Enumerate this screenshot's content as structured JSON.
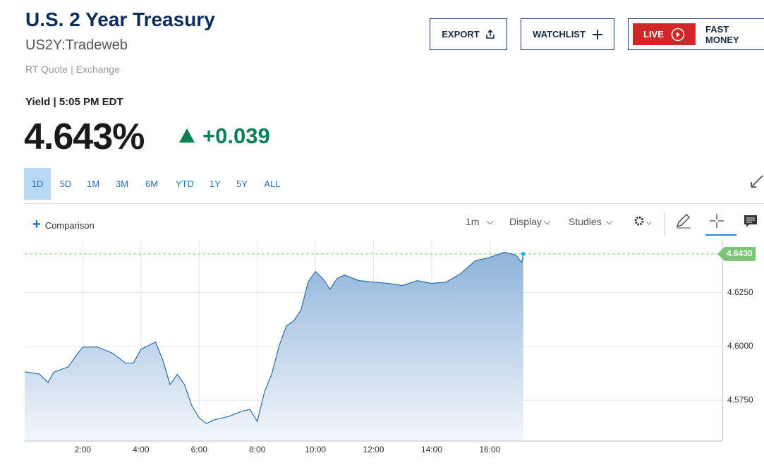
{
  "header": {
    "title": "U.S. 2 Year Treasury",
    "symbol": "US2Y:Tradeweb",
    "source": "RT Quote | Exchange"
  },
  "buttons": {
    "export": "EXPORT",
    "watchlist": "WATCHLIST",
    "live": "LIVE",
    "fast_money": "FAST MONEY"
  },
  "quote": {
    "label": "Yield | 5:05 PM EDT",
    "price": "4.643%",
    "change": "+0.039"
  },
  "tabs": [
    "1D",
    "5D",
    "1M",
    "3M",
    "6M",
    "YTD",
    "1Y",
    "5Y",
    "ALL"
  ],
  "toolbar": {
    "comparison": "Comparison",
    "interval": "1m",
    "display": "Display",
    "studies": "Studies"
  },
  "chart_data": {
    "type": "area",
    "color": "#2a6fad",
    "x": [
      0,
      0.5,
      0.8,
      1,
      1.5,
      1.75,
      2,
      2.5,
      3,
      3.5,
      3.75,
      4,
      4.5,
      4.75,
      5,
      5.25,
      5.5,
      5.75,
      6,
      6.25,
      6.5,
      7,
      7.5,
      7.75,
      8,
      8.25,
      8.5,
      8.75,
      9,
      9.25,
      9.5,
      9.75,
      10,
      10.25,
      10.5,
      10.75,
      11,
      11.5,
      12,
      12.5,
      13,
      13.5,
      14,
      14.5,
      15,
      15.5,
      16,
      16.5,
      16.9,
      17.1,
      17.15
    ],
    "values": [
      4.5882,
      4.5872,
      4.5832,
      4.588,
      4.5905,
      4.5954,
      4.5997,
      4.5997,
      4.597,
      4.592,
      4.5924,
      4.5987,
      4.602,
      4.5938,
      4.5822,
      4.587,
      4.5822,
      4.5724,
      4.5668,
      4.5641,
      4.5658,
      4.5674,
      4.57,
      4.5707,
      4.5651,
      4.579,
      4.5872,
      4.6003,
      4.6095,
      4.6118,
      4.6168,
      4.6299,
      4.6349,
      4.6316,
      4.6266,
      4.6316,
      4.6332,
      4.6306,
      4.6299,
      4.6293,
      4.6283,
      4.6306,
      4.6293,
      4.6299,
      4.6339,
      4.6398,
      4.6414,
      4.6438,
      4.6424,
      4.6391,
      4.643
    ],
    "xlim": [
      0,
      24
    ],
    "xticks": [
      {
        "value": 2,
        "label": "2:00"
      },
      {
        "value": 4,
        "label": "4:00"
      },
      {
        "value": 6,
        "label": "6:00"
      },
      {
        "value": 8,
        "label": "8:00"
      },
      {
        "value": 10,
        "label": "10:00"
      },
      {
        "value": 12,
        "label": "12:00"
      },
      {
        "value": 14,
        "label": "14:00"
      },
      {
        "value": 16,
        "label": "16:00"
      }
    ],
    "ylim": [
      4.556,
      4.6495
    ],
    "yticks": [
      {
        "value": 4.625,
        "label": "4.6250"
      },
      {
        "value": 4.6,
        "label": "4.6000"
      },
      {
        "value": 4.575,
        "label": "4.5750"
      }
    ],
    "last_price": {
      "value": 4.643,
      "label": "4.6430"
    },
    "grid": true
  }
}
